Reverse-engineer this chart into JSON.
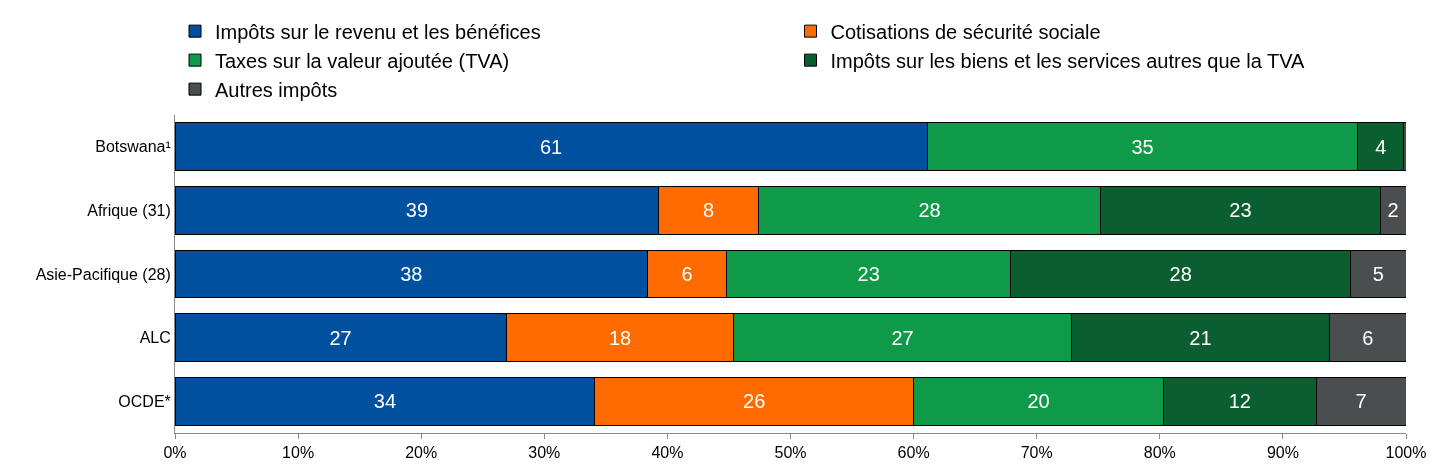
{
  "chart_data": {
    "type": "bar",
    "orientation": "horizontal",
    "stacked": true,
    "categories": [
      "Botswana¹",
      "Afrique (31)",
      "Asie-Pacifique (28)",
      "ALC",
      "OCDE*"
    ],
    "series": [
      {
        "name": "Impôts sur le revenu et les bénéfices",
        "color": "#0050a0",
        "values": [
          61.1,
          39.3,
          38.4,
          26.9,
          34.1
        ],
        "value_labels": [
          "61",
          "39",
          "38",
          "27",
          "34"
        ]
      },
      {
        "name": "Cotisations de sécurité sociale",
        "color": "#ff6b00",
        "values": [
          null,
          8.1,
          6.4,
          18.5,
          25.9
        ],
        "value_labels": [
          null,
          "8",
          "6",
          "18",
          "26"
        ]
      },
      {
        "name": "Taxes sur la valeur ajoutée (TVA)",
        "color": "#0f9a4a",
        "values": [
          35.0,
          27.8,
          23.1,
          27.4,
          20.3
        ],
        "value_labels": [
          "35",
          "28",
          "23",
          "27",
          "20"
        ]
      },
      {
        "name": "Impôts sur les biens et les services autres que la TVA",
        "color": "#0b5e30",
        "values": [
          3.7,
          22.7,
          27.6,
          21.0,
          12.4
        ],
        "value_labels": [
          "4",
          "23",
          "28",
          "21",
          "12"
        ]
      },
      {
        "name": "Autres impôts",
        "color": "#4a4e4f",
        "values": [
          0.2,
          2.1,
          4.5,
          6.2,
          7.3
        ],
        "value_labels": [
          null,
          "2",
          "5",
          "6",
          "7"
        ]
      }
    ],
    "xlim": [
      0,
      100
    ],
    "xticks": [
      {
        "value": 0,
        "label": "0%"
      },
      {
        "value": 10,
        "label": "10%"
      },
      {
        "value": 20,
        "label": "20%"
      },
      {
        "value": 30,
        "label": "30%"
      },
      {
        "value": 40,
        "label": "40%"
      },
      {
        "value": 50,
        "label": "50%"
      },
      {
        "value": 60,
        "label": "60%"
      },
      {
        "value": 70,
        "label": "70%"
      },
      {
        "value": 80,
        "label": "80%"
      },
      {
        "value": 90,
        "label": "90%"
      },
      {
        "value": 100,
        "label": "100%"
      }
    ],
    "legend": "top"
  }
}
